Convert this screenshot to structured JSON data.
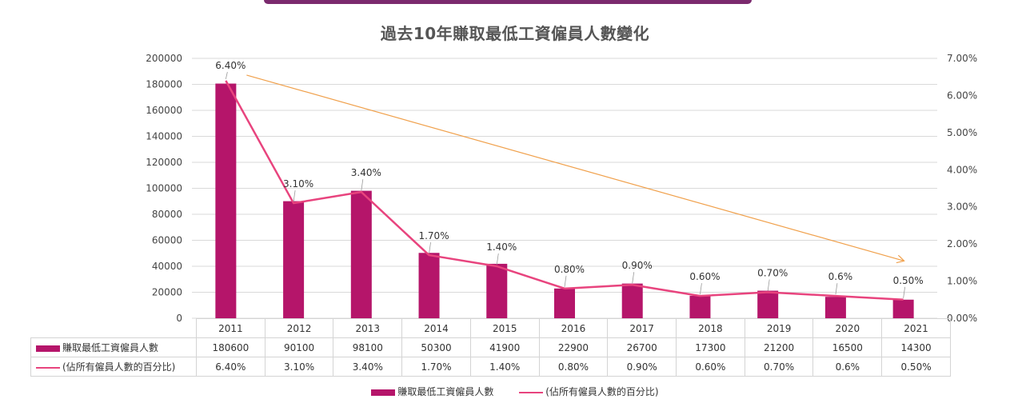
{
  "title": "過去10年賺取最低工資僱員人數變化",
  "colors": {
    "bar": "#b5156a",
    "line": "#e8447e",
    "trend": "#f0a04b",
    "grid": "#d9d9d9"
  },
  "chart_data": {
    "type": "bar",
    "categories": [
      "2011",
      "2012",
      "2013",
      "2014",
      "2015",
      "2016",
      "2017",
      "2018",
      "2019",
      "2020",
      "2021"
    ],
    "series": [
      {
        "name": "賺取最低工資僱員人數",
        "type": "bar",
        "axis": "left",
        "values": [
          180600,
          90100,
          98100,
          50300,
          41900,
          22900,
          26700,
          17300,
          21200,
          16500,
          14300
        ],
        "table_labels": [
          "180600",
          "90100",
          "98100",
          "50300",
          "41900",
          "22900",
          "26700",
          "17300",
          "21200",
          "16500",
          "14300"
        ]
      },
      {
        "name": "(佔所有僱員人數的百分比)",
        "type": "line",
        "axis": "right",
        "values": [
          6.4,
          3.1,
          3.4,
          1.7,
          1.4,
          0.8,
          0.9,
          0.6,
          0.7,
          0.6,
          0.5
        ],
        "labels": [
          "6.40%",
          "3.10%",
          "3.40%",
          "1.70%",
          "1.40%",
          "0.80%",
          "0.90%",
          "0.60%",
          "0.70%",
          "0.6%",
          "0.50%"
        ]
      }
    ],
    "trendline": {
      "from": [
        2011,
        6.55
      ],
      "to": [
        2021,
        1.55
      ],
      "axis": "right"
    },
    "y_left": {
      "min": 0,
      "max": 200000,
      "ticks": [
        "0",
        "20000",
        "40000",
        "60000",
        "80000",
        "100000",
        "120000",
        "140000",
        "160000",
        "180000",
        "200000"
      ]
    },
    "y_right": {
      "min": 0,
      "max": 7,
      "ticks": [
        "0.00%",
        "1.00%",
        "2.00%",
        "3.00%",
        "4.00%",
        "5.00%",
        "6.00%",
        "7.00%"
      ]
    },
    "legend": [
      "賺取最低工資僱員人數",
      "(佔所有僱員人數的百分比)"
    ]
  }
}
